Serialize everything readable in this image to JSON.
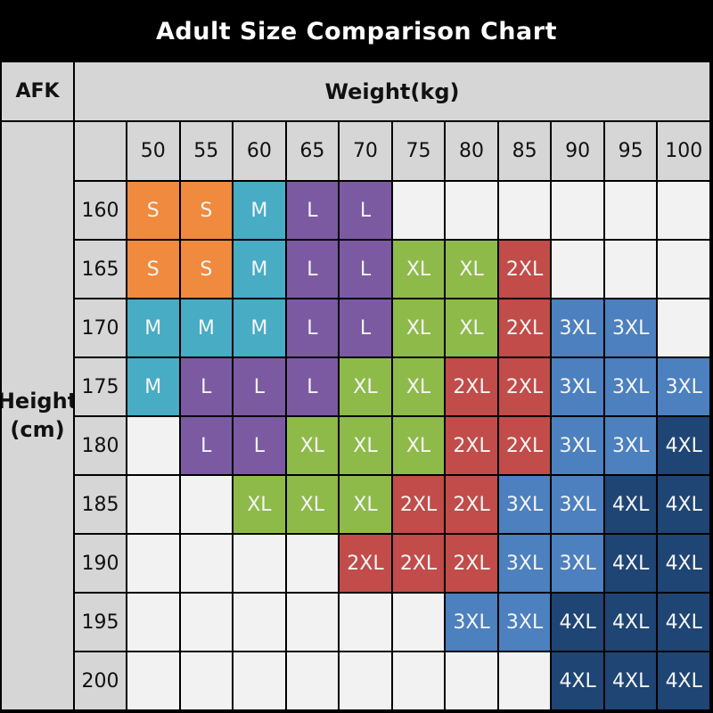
{
  "title": "Adult Size Comparison Chart",
  "colors": {
    "page_background": "#000000",
    "grid_line": "#000000",
    "header_bg": "#d6d6d6",
    "empty_cell_bg": "#f2f2f2",
    "header_text": "#111111",
    "title_text": "#ffffff",
    "size_cell_text": "#f5f5f5"
  },
  "chart_data": {
    "type": "table",
    "title": "Adult Size Comparison Chart",
    "corner_label": "AFK",
    "column_group_label": "Weight(kg)",
    "row_group_label_line1": "Height",
    "row_group_label_line2": "(cm)",
    "columns": [
      "50",
      "55",
      "60",
      "65",
      "70",
      "75",
      "80",
      "85",
      "90",
      "95",
      "100"
    ],
    "rows": [
      {
        "height": "160",
        "cells": [
          "S",
          "S",
          "M",
          "L",
          "L",
          "",
          "",
          "",
          "",
          "",
          ""
        ]
      },
      {
        "height": "165",
        "cells": [
          "S",
          "S",
          "M",
          "L",
          "L",
          "XL",
          "XL",
          "2XL",
          "",
          "",
          ""
        ]
      },
      {
        "height": "170",
        "cells": [
          "M",
          "M",
          "M",
          "L",
          "L",
          "XL",
          "XL",
          "2XL",
          "3XL",
          "3XL",
          ""
        ]
      },
      {
        "height": "175",
        "cells": [
          "M",
          "L",
          "L",
          "L",
          "XL",
          "XL",
          "2XL",
          "2XL",
          "3XL",
          "3XL",
          "3XL"
        ]
      },
      {
        "height": "180",
        "cells": [
          "",
          "L",
          "L",
          "XL",
          "XL",
          "XL",
          "2XL",
          "2XL",
          "3XL",
          "3XL",
          "4XL"
        ]
      },
      {
        "height": "185",
        "cells": [
          "",
          "",
          "XL",
          "XL",
          "XL",
          "2XL",
          "2XL",
          "3XL",
          "3XL",
          "4XL",
          "4XL"
        ]
      },
      {
        "height": "190",
        "cells": [
          "",
          "",
          "",
          "",
          "2XL",
          "2XL",
          "2XL",
          "3XL",
          "3XL",
          "4XL",
          "4XL"
        ]
      },
      {
        "height": "195",
        "cells": [
          "",
          "",
          "",
          "",
          "",
          "",
          "3XL",
          "3XL",
          "4XL",
          "4XL",
          "4XL"
        ]
      },
      {
        "height": "200",
        "cells": [
          "",
          "",
          "",
          "",
          "",
          "",
          "",
          "",
          "4XL",
          "4XL",
          "4XL"
        ]
      }
    ],
    "size_colors": {
      "S": "#ef8a3e",
      "M": "#47acc4",
      "L": "#7c5aa2",
      "XL": "#8eba4a",
      "2XL": "#c14c49",
      "3XL": "#4c80be",
      "4XL": "#1e4574"
    },
    "legend": "cell color encodes garment size",
    "grid": true
  }
}
